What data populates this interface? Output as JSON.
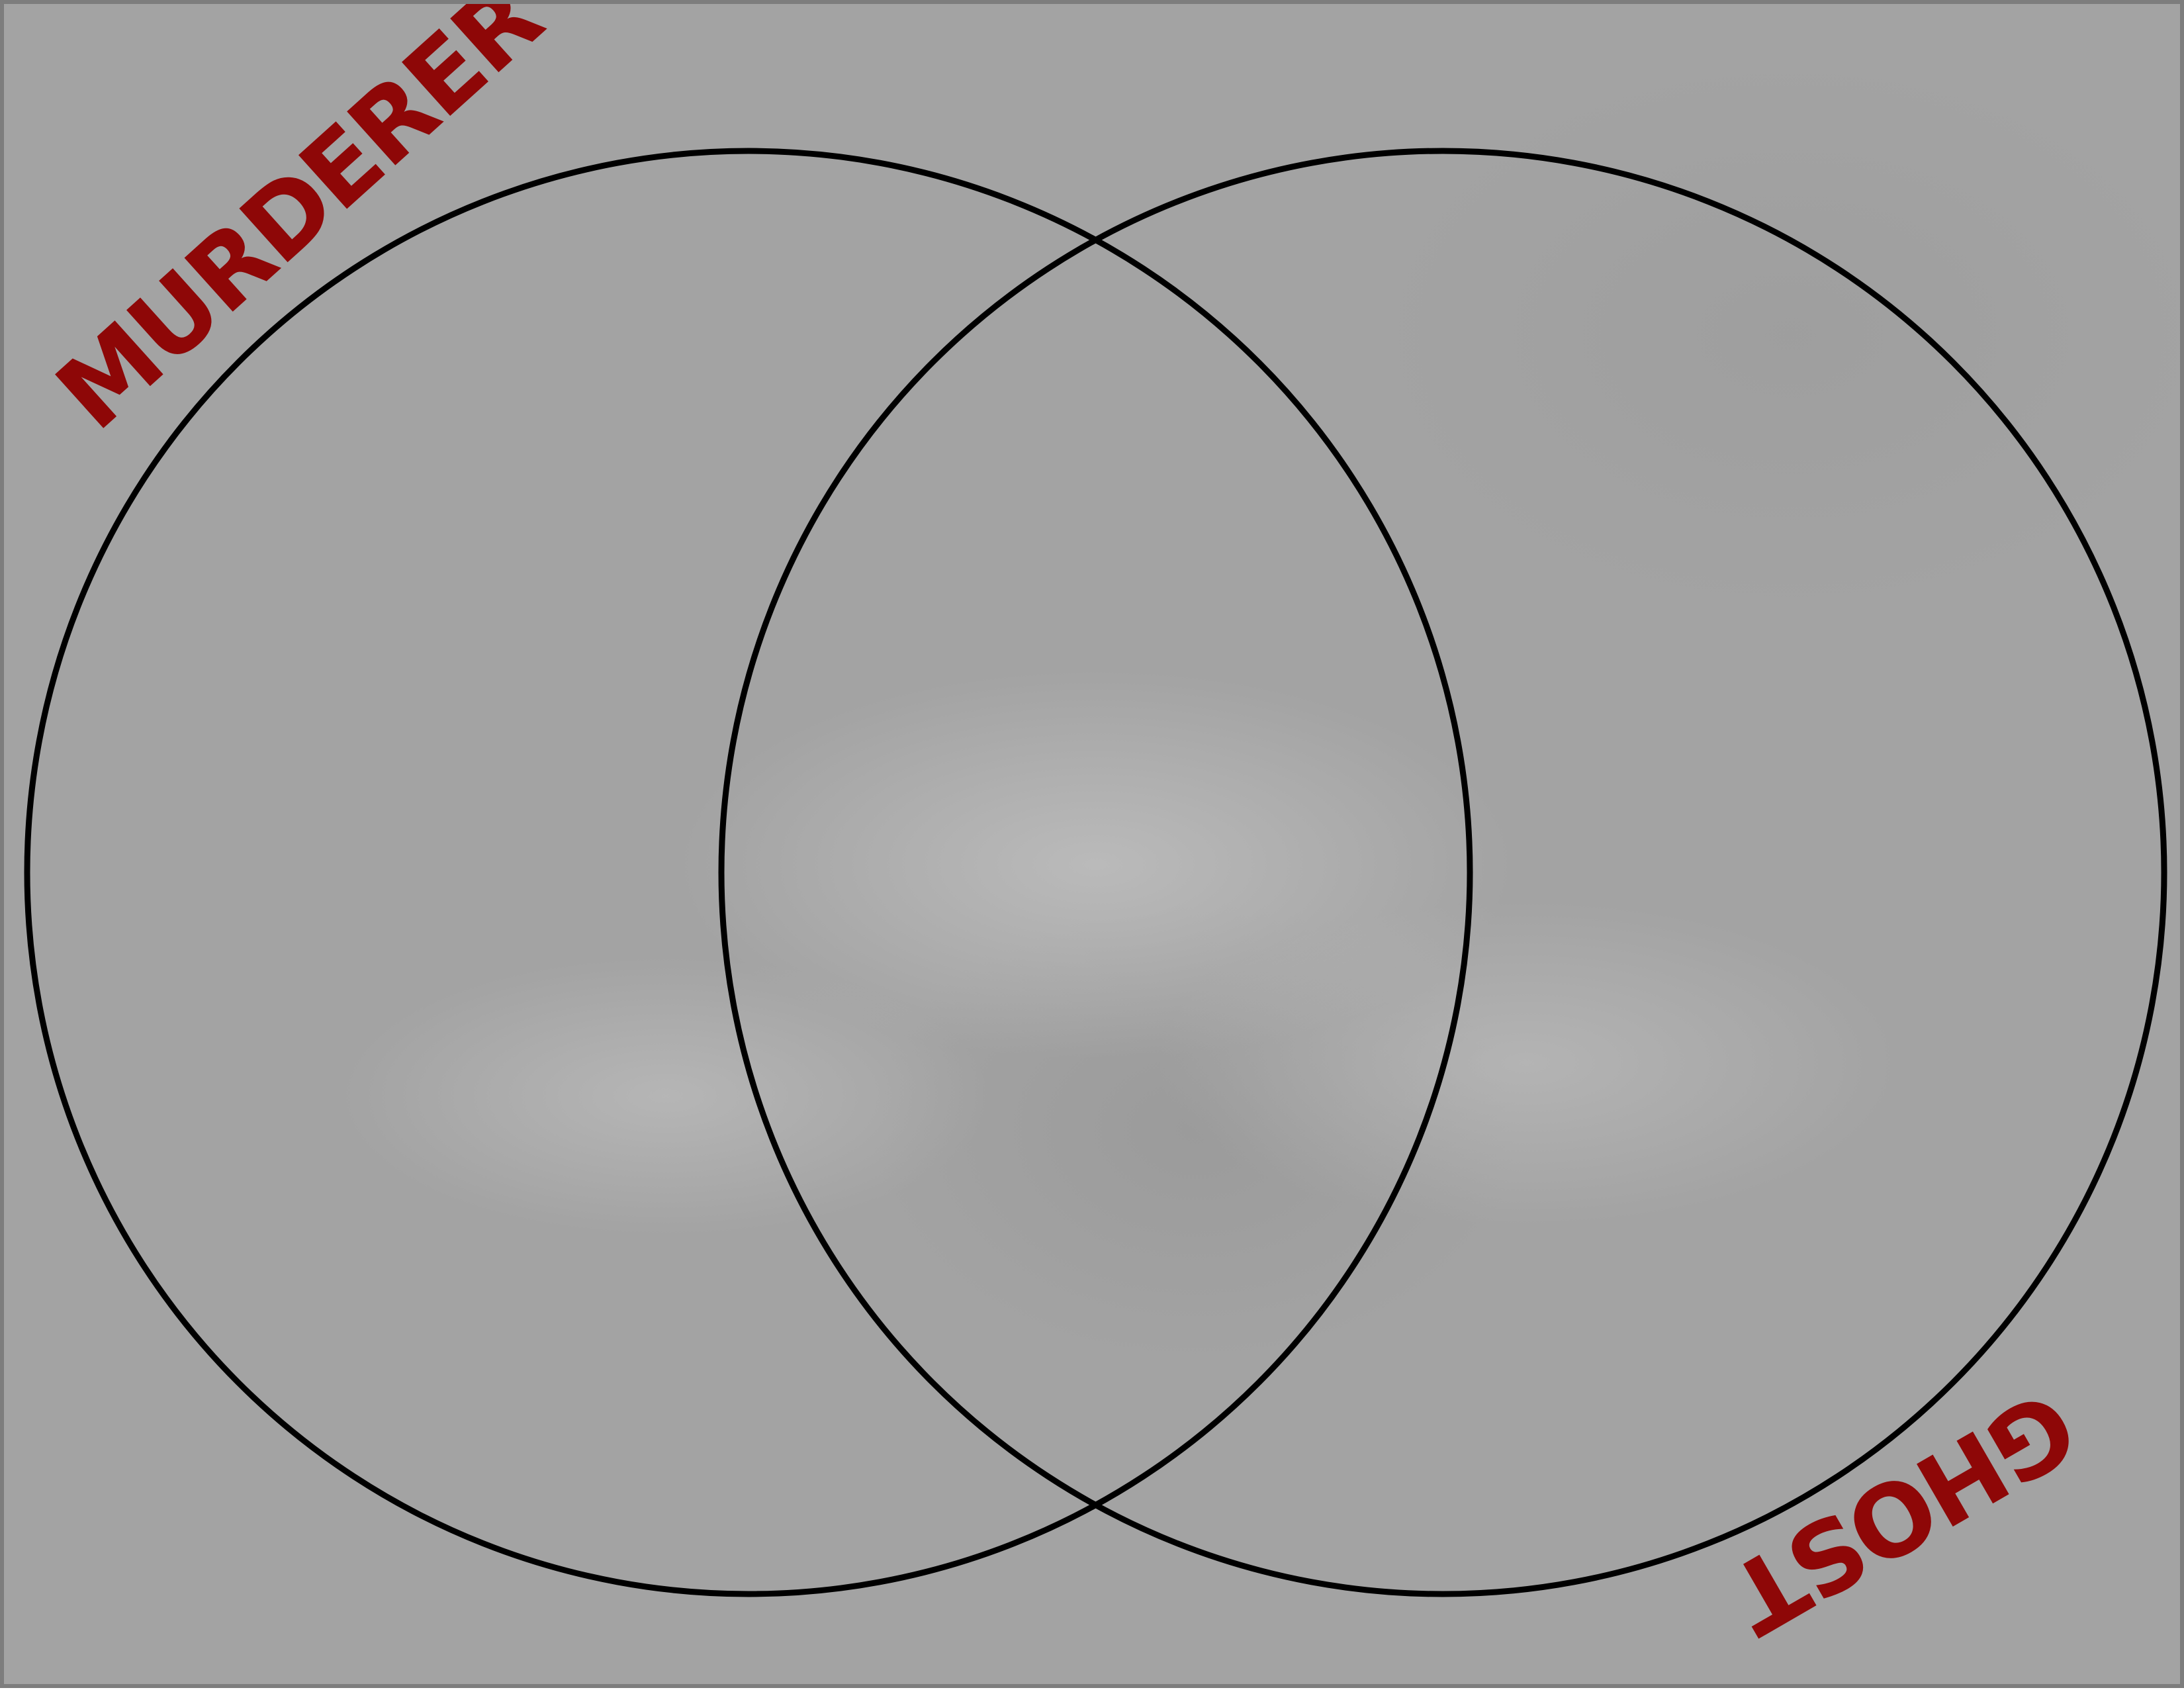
{
  "diagram": {
    "type": "venn",
    "sets": [
      {
        "label": "MURDERER"
      },
      {
        "label": "GHOST"
      }
    ],
    "colors": {
      "label": "#8e0707",
      "circle_stroke": "#000000",
      "background": "#a3a3a3"
    }
  }
}
